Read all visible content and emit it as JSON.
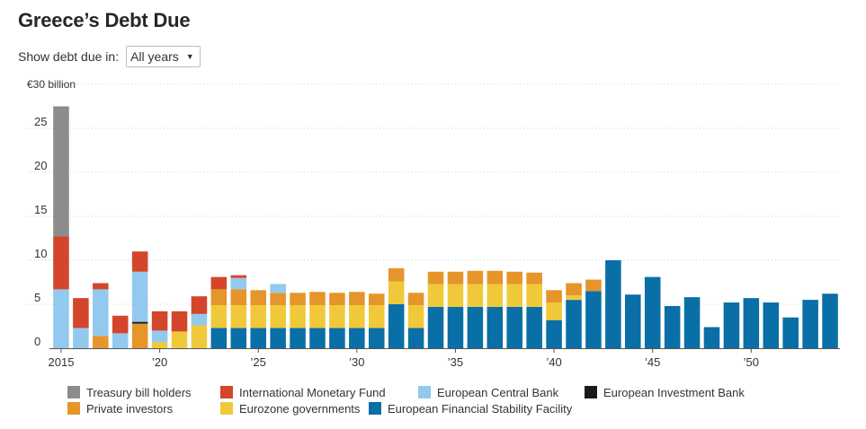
{
  "title": "Greece’s Debt Due",
  "filter": {
    "label": "Show debt due in:",
    "value": "All years"
  },
  "chart_data": {
    "type": "bar",
    "stacked": true,
    "y_unit_label": "€30 billion",
    "ylim": [
      0,
      30
    ],
    "y_ticks": [
      0,
      5,
      10,
      15,
      20,
      25
    ],
    "x_tick_labels": [
      {
        "year": 2015,
        "label": "2015"
      },
      {
        "year": 2020,
        "label": "’20"
      },
      {
        "year": 2025,
        "label": "’25"
      },
      {
        "year": 2030,
        "label": "’30"
      },
      {
        "year": 2035,
        "label": "’35"
      },
      {
        "year": 2040,
        "label": "’40"
      },
      {
        "year": 2045,
        "label": "’45"
      },
      {
        "year": 2050,
        "label": "’50"
      }
    ],
    "grid": true,
    "legend_position": "bottom",
    "categories": [
      2015,
      2016,
      2017,
      2018,
      2019,
      2020,
      2021,
      2022,
      2023,
      2024,
      2025,
      2026,
      2027,
      2028,
      2029,
      2030,
      2031,
      2032,
      2033,
      2034,
      2035,
      2036,
      2037,
      2038,
      2039,
      2040,
      2041,
      2042,
      2043,
      2044,
      2045,
      2046,
      2047,
      2048,
      2049,
      2050,
      2051,
      2052,
      2053,
      2054
    ],
    "series": [
      {
        "name": "European Financial Stability Facility",
        "color": "#0a6fa6",
        "values": [
          0,
          0,
          0,
          0,
          0,
          0,
          0,
          0,
          2.3,
          2.3,
          2.3,
          2.3,
          2.3,
          2.3,
          2.3,
          2.3,
          2.3,
          5.0,
          2.3,
          4.7,
          4.7,
          4.7,
          4.7,
          4.7,
          4.7,
          3.2,
          5.5,
          6.5,
          10.0,
          6.1,
          8.1,
          4.8,
          5.8,
          2.4,
          5.2,
          5.7,
          5.2,
          3.5,
          5.5,
          6.2
        ]
      },
      {
        "name": "Eurozone governments",
        "color": "#f0c93a",
        "values": [
          0,
          0,
          0,
          0,
          0,
          0.7,
          1.9,
          2.6,
          2.6,
          2.6,
          2.6,
          2.6,
          2.6,
          2.6,
          2.6,
          2.6,
          2.6,
          2.6,
          2.6,
          2.6,
          2.6,
          2.6,
          2.6,
          2.6,
          2.6,
          2.0,
          0.5,
          0,
          0,
          0,
          0,
          0,
          0,
          0,
          0,
          0,
          0,
          0,
          0,
          0
        ]
      },
      {
        "name": "Private investors",
        "color": "#e5952a",
        "values": [
          0,
          0,
          1.4,
          0,
          2.8,
          0,
          0,
          0,
          1.8,
          1.8,
          1.7,
          1.4,
          1.4,
          1.5,
          1.4,
          1.5,
          1.3,
          1.5,
          1.4,
          1.4,
          1.4,
          1.5,
          1.5,
          1.4,
          1.3,
          1.4,
          1.4,
          1.3,
          0,
          0,
          0,
          0,
          0,
          0,
          0,
          0,
          0,
          0,
          0,
          0
        ]
      },
      {
        "name": "European Investment Bank",
        "color": "#1a1a1a",
        "values": [
          0,
          0,
          0,
          0,
          0.2,
          0,
          0,
          0,
          0,
          0,
          0,
          0,
          0,
          0,
          0,
          0,
          0,
          0,
          0,
          0,
          0,
          0,
          0,
          0,
          0,
          0,
          0,
          0,
          0,
          0,
          0,
          0,
          0,
          0,
          0,
          0,
          0,
          0,
          0,
          0
        ]
      },
      {
        "name": "European Central Bank",
        "color": "#93c9ee",
        "values": [
          6.7,
          2.3,
          5.3,
          1.7,
          5.7,
          1.3,
          0,
          1.3,
          0,
          1.3,
          0,
          1.0,
          0,
          0,
          0,
          0,
          0,
          0,
          0,
          0,
          0,
          0,
          0,
          0,
          0,
          0,
          0,
          0,
          0,
          0,
          0,
          0,
          0,
          0,
          0,
          0,
          0,
          0,
          0,
          0
        ]
      },
      {
        "name": "International Monetary Fund",
        "color": "#d4452c",
        "values": [
          6.0,
          3.4,
          0.7,
          2.0,
          2.3,
          2.2,
          2.3,
          2.0,
          1.4,
          0.3,
          0,
          0,
          0,
          0,
          0,
          0,
          0,
          0,
          0,
          0,
          0,
          0,
          0,
          0,
          0,
          0,
          0,
          0,
          0,
          0,
          0,
          0,
          0,
          0,
          0,
          0,
          0,
          0,
          0,
          0
        ]
      },
      {
        "name": "Treasury bill holders",
        "color": "#8c8c8c",
        "values": [
          14.8,
          0,
          0,
          0,
          0,
          0,
          0,
          0,
          0,
          0,
          0,
          0,
          0,
          0,
          0,
          0,
          0,
          0,
          0,
          0,
          0,
          0,
          0,
          0,
          0,
          0,
          0,
          0,
          0,
          0,
          0,
          0,
          0,
          0,
          0,
          0,
          0,
          0,
          0,
          0
        ]
      }
    ]
  },
  "legend": {
    "rows": [
      [
        {
          "label": "Treasury bill holders",
          "color": "#8c8c8c"
        },
        {
          "label": "International Monetary Fund",
          "color": "#d4452c"
        },
        {
          "label": "European Central Bank",
          "color": "#93c9ee"
        },
        {
          "label": "European Investment Bank",
          "color": "#1a1a1a"
        }
      ],
      [
        {
          "label": "Private investors",
          "color": "#e5952a"
        },
        {
          "label": "Eurozone governments",
          "color": "#f0c93a"
        },
        {
          "label": "European Financial Stability Facility",
          "color": "#0a6fa6"
        }
      ]
    ]
  }
}
